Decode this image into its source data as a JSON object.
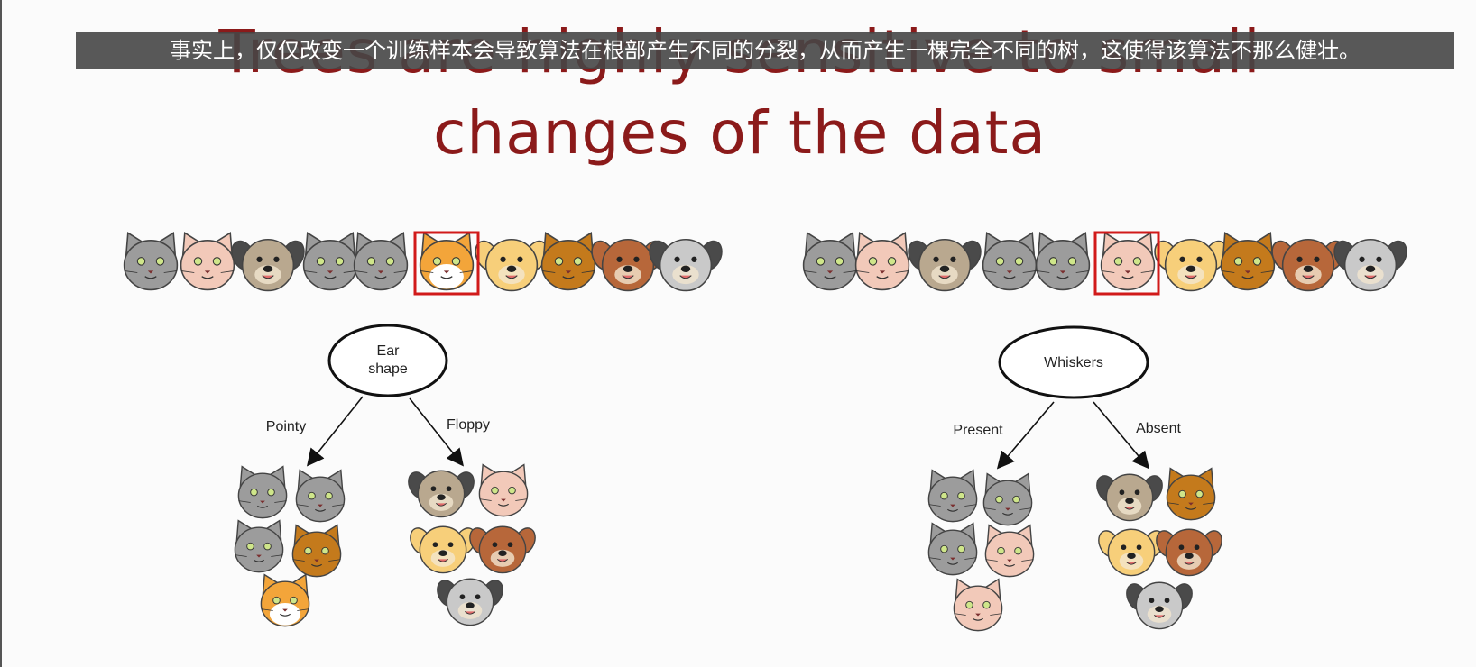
{
  "subtitle": "事实上，仅仅改变一个训练样本会导致算法在根部产生不同的分裂，从而产生一棵完全不同的树，这使得该算法不那么健壮。",
  "title": {
    "line1": "Trees are highly sensitive to small",
    "line2": "changes of the data"
  },
  "colors": {
    "title": "#8b1a1a",
    "highlight": "#d11a1a",
    "grey_cat": "#9c9c9c",
    "pink_cat": "#f2c9b9",
    "orange_cat": "#f3a53a",
    "brown_cat": "#c47a1c",
    "tan_dog": "#b9a88f",
    "yellow_dog": "#f7cf7a",
    "brown_dog": "#b7673a",
    "grey_dog": "#c9c9c9"
  },
  "left_tree": {
    "root": {
      "line1": "Ear",
      "line2": "shape"
    },
    "left_branch": "Pointy",
    "right_branch": "Floppy"
  },
  "right_tree": {
    "root": {
      "line1": "Whiskers"
    },
    "left_branch": "Present",
    "right_branch": "Absent"
  }
}
